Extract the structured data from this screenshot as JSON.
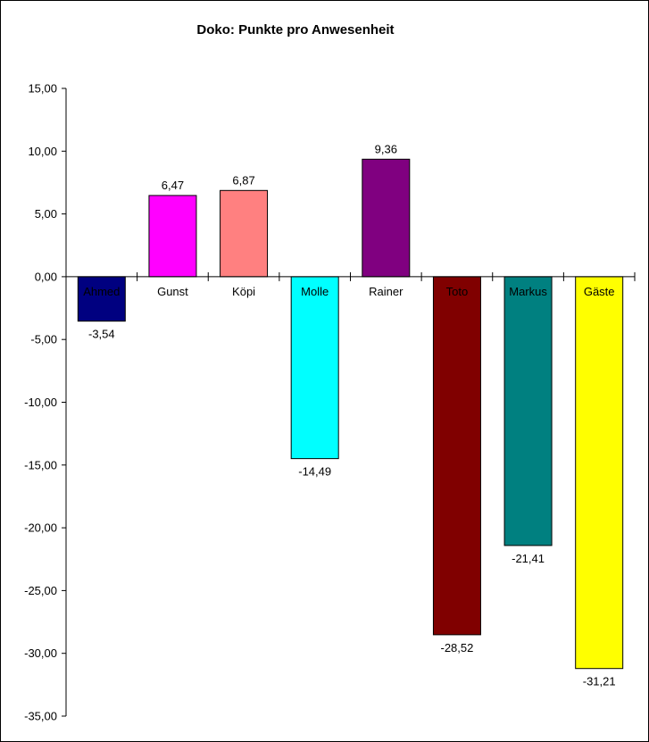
{
  "chart_data": {
    "type": "bar",
    "title": "Doko: Punkte pro Anwesenheit",
    "xlabel": "",
    "ylabel": "",
    "ylim": [
      -35,
      15
    ],
    "y_ticks": [
      15,
      10,
      5,
      0,
      -5,
      -10,
      -15,
      -20,
      -25,
      -30,
      -35
    ],
    "y_tick_labels": [
      "15,00",
      "10,00",
      "5,00",
      "0,00",
      "-5,00",
      "-10,00",
      "-15,00",
      "-20,00",
      "-25,00",
      "-30,00",
      "-35,00"
    ],
    "grid": false,
    "legend": "none",
    "categories": [
      "Ahmed",
      "Gunst",
      "Köpi",
      "Molle",
      "Rainer",
      "Toto",
      "Markus",
      "Gäste"
    ],
    "values": [
      -3.54,
      6.47,
      6.87,
      -14.49,
      9.36,
      -28.52,
      -21.41,
      -31.21
    ],
    "value_labels": [
      "-3,54",
      "6,47",
      "6,87",
      "-14,49",
      "9,36",
      "-28,52",
      "-21,41",
      "-31,21"
    ],
    "colors": [
      "#000080",
      "#FF00FF",
      "#FF8080",
      "#00FFFF",
      "#800080",
      "#800000",
      "#008080",
      "#FFFF00"
    ]
  }
}
